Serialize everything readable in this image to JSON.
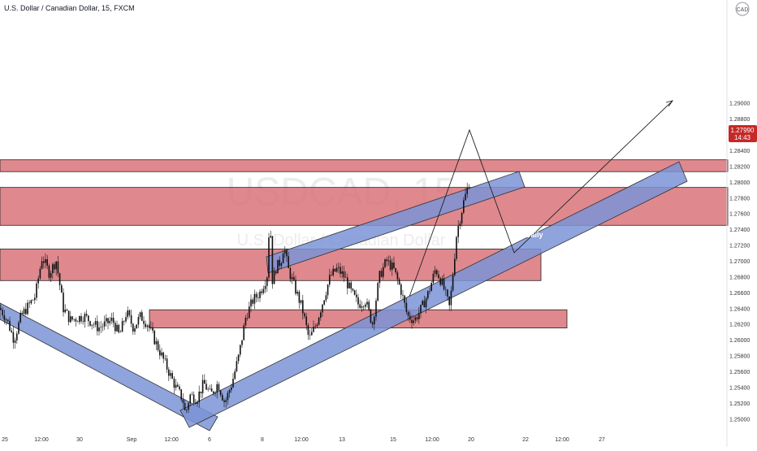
{
  "header": {
    "symbol_title": "U.S. Dollar / Canadian Dollar, 15, FXCM",
    "currency_badge": "CAD"
  },
  "watermark": {
    "ticker": "USDCAD, 15",
    "name": "U.S. Dollar / Canadian Dollar"
  },
  "price_label": {
    "price": "1.27990",
    "countdown": "14:43",
    "color": "#c62828"
  },
  "annotation": {
    "zone_label": "Daily"
  },
  "colors": {
    "zone_fill": "#d9747a",
    "channel_fill": "#7b93d6",
    "candle": "#111111",
    "background": "#ffffff",
    "axis_text": "#333333"
  },
  "chart_data": {
    "type": "candlestick",
    "title": "U.S. Dollar / Canadian Dollar, 15, FXCM",
    "ylim": [
      1.249,
      1.3015
    ],
    "y_ticks": [
      "1.29000",
      "1.28800",
      "1.28600",
      "1.28400",
      "1.28200",
      "1.28000",
      "1.27800",
      "1.27600",
      "1.27400",
      "1.27200",
      "1.27000",
      "1.26800",
      "1.26600",
      "1.26400",
      "1.26200",
      "1.26000",
      "1.25800",
      "1.25600",
      "1.25400",
      "1.25200",
      "1.25000"
    ],
    "x_ticks": [
      "25",
      "12:00",
      "30",
      "Sep",
      "12:00",
      "6",
      "8",
      "12:00",
      "13",
      "15",
      "12:00",
      "20",
      "22",
      "12:00",
      "27"
    ],
    "price_path": [
      [
        0,
        1.264
      ],
      [
        0.5,
        1.2625
      ],
      [
        1,
        1.26
      ],
      [
        1.5,
        1.263
      ],
      [
        2.5,
        1.2655
      ],
      [
        3,
        1.2705
      ],
      [
        3.5,
        1.2685
      ],
      [
        4,
        1.27
      ],
      [
        4.5,
        1.264
      ],
      [
        5,
        1.2625
      ],
      [
        6,
        1.263
      ],
      [
        7,
        1.2615
      ],
      [
        8,
        1.2625
      ],
      [
        8.5,
        1.2605
      ],
      [
        9,
        1.2635
      ],
      [
        9.5,
        1.2615
      ],
      [
        10,
        1.263
      ],
      [
        10.5,
        1.262
      ],
      [
        11,
        1.26
      ],
      [
        11.5,
        1.258
      ],
      [
        12,
        1.256
      ],
      [
        12.5,
        1.254
      ],
      [
        13,
        1.2525
      ],
      [
        13.2,
        1.2505
      ],
      [
        13.5,
        1.253
      ],
      [
        14,
        1.2525
      ],
      [
        14.5,
        1.2545
      ],
      [
        15,
        1.253
      ],
      [
        15.5,
        1.2545
      ],
      [
        16,
        1.252
      ],
      [
        16.5,
        1.2545
      ],
      [
        17,
        1.258
      ],
      [
        17.5,
        1.263
      ],
      [
        18,
        1.265
      ],
      [
        18.5,
        1.266
      ],
      [
        19,
        1.268
      ],
      [
        19.2,
        1.276
      ],
      [
        19.4,
        1.267
      ],
      [
        19.6,
        1.269
      ],
      [
        20,
        1.27
      ],
      [
        20.2,
        1.272
      ],
      [
        20.5,
        1.269
      ],
      [
        21,
        1.2665
      ],
      [
        21.5,
        1.264
      ],
      [
        22,
        1.26
      ],
      [
        22.5,
        1.262
      ],
      [
        23,
        1.265
      ],
      [
        23.5,
        1.268
      ],
      [
        24,
        1.269
      ],
      [
        24.5,
        1.268
      ],
      [
        25,
        1.266
      ],
      [
        25.5,
        1.2645
      ],
      [
        26,
        1.265
      ],
      [
        26.5,
        1.262
      ],
      [
        27,
        1.268
      ],
      [
        27.5,
        1.27
      ],
      [
        28,
        1.269
      ],
      [
        28.5,
        1.2665
      ],
      [
        29,
        1.263
      ],
      [
        29.5,
        1.2625
      ],
      [
        30,
        1.264
      ],
      [
        30.5,
        1.266
      ],
      [
        31,
        1.269
      ],
      [
        31.5,
        1.267
      ],
      [
        32,
        1.264
      ],
      [
        32.5,
        1.2735
      ],
      [
        33,
        1.2775
      ],
      [
        33.4,
        1.28
      ]
    ],
    "drawings": {
      "zones": [
        {
          "from": 1.2813,
          "to": 1.2828,
          "x_start": "25",
          "x_end": "right edge"
        },
        {
          "from": 1.2745,
          "to": 1.2793,
          "x_start": "25",
          "x_end": "right edge"
        },
        {
          "from": 1.2675,
          "to": 1.2715,
          "x_start": "25",
          "x_end": "22"
        },
        {
          "from": 1.2615,
          "to": 1.2638,
          "x_start": "Sep",
          "x_end": "12:00"
        }
      ],
      "channels": [
        "descending lower-left",
        "rising lower",
        "rising upper"
      ],
      "projection": {
        "from": 1.28,
        "to_low": 1.2675,
        "target": 1.2828
      }
    }
  }
}
